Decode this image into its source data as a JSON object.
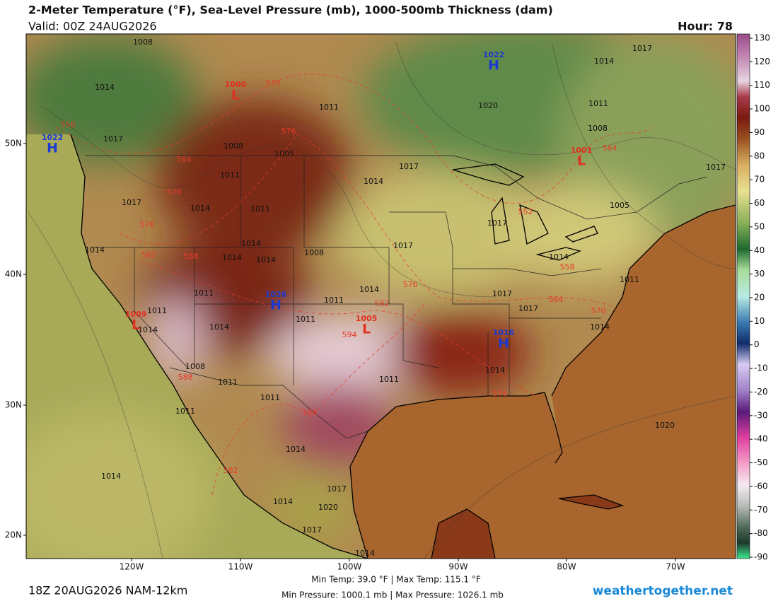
{
  "header": {
    "title": "2-Meter Temperature (°F), Sea-Level Pressure (mb), 1000-500mb Thickness (dam)",
    "valid": "Valid: 00Z 24AUG2026",
    "hour": "Hour: 78"
  },
  "colorbar": {
    "ticks": [
      130,
      120,
      110,
      100,
      90,
      80,
      70,
      60,
      50,
      40,
      30,
      20,
      10,
      0,
      -10,
      -20,
      -30,
      -40,
      -50,
      -60,
      -70,
      -80,
      -90
    ]
  },
  "map": {
    "lat_labels": [
      "50N",
      "40N",
      "30N",
      "20N"
    ],
    "lon_labels": [
      "120W",
      "110W",
      "100W",
      "90W",
      "80W",
      "70W"
    ],
    "pressure_centers": [
      {
        "type": "H",
        "value": 1022
      },
      {
        "type": "L",
        "value": 1000
      },
      {
        "type": "H",
        "value": 1022
      },
      {
        "type": "L",
        "value": 1001
      },
      {
        "type": "H",
        "value": 1026
      },
      {
        "type": "L",
        "value": 1009
      },
      {
        "type": "L",
        "value": 1005
      },
      {
        "type": "H",
        "value": 1016
      }
    ],
    "isobar_labels": [
      1008,
      1014,
      1017,
      1011,
      1020,
      1008,
      1005,
      1011,
      1014,
      1017,
      1017,
      1014,
      1011,
      1014,
      1014,
      1014,
      1014,
      1008,
      1017,
      1017,
      1014,
      1011,
      1014,
      1017,
      1017,
      1011,
      1011,
      1011,
      1014,
      1014,
      1011,
      1014,
      1008,
      1011,
      1011,
      1014,
      1011,
      1011,
      1020,
      1014,
      1014,
      1017,
      1020,
      1014,
      1017,
      1014,
      1017,
      1014,
      1011,
      1008,
      1005,
      1017
    ],
    "thickness_labels": [
      570,
      576,
      558,
      564,
      570,
      576,
      582,
      588,
      552,
      558,
      564,
      570,
      576,
      582,
      594,
      588,
      588,
      576,
      582,
      564
    ]
  },
  "footer": {
    "run": "18Z 20AUG2026 NAM-12km",
    "temp_range": "Min Temp:  39.0 °F | Max Temp: 115.1 °F",
    "pressure_range": "Min Pressure: 1000.1 mb | Max Pressure: 1026.1 mb",
    "site": "weathertogether.net"
  }
}
